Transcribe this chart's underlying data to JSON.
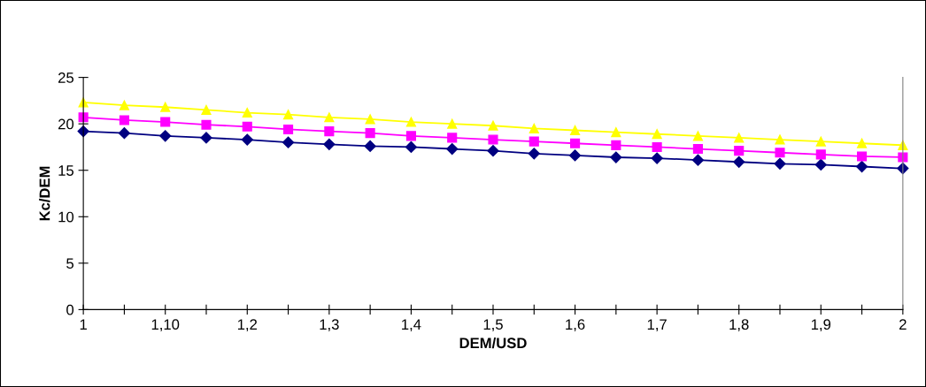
{
  "chart_data": {
    "type": "line",
    "xlabel": "DEM/USD",
    "ylabel": "Kc/DEM",
    "categories": [
      "1",
      null,
      "1,10",
      null,
      "1,2",
      null,
      "1,3",
      null,
      "1,4",
      null,
      "1,5",
      null,
      "1,6",
      null,
      "1,7",
      null,
      "1,8",
      null,
      "1,9",
      null,
      "2"
    ],
    "series": [
      {
        "color": "#000080",
        "marker": "diamond",
        "values": [
          19.2,
          19.0,
          18.7,
          18.5,
          18.3,
          18.0,
          17.8,
          17.6,
          17.5,
          17.3,
          17.1,
          16.8,
          16.6,
          16.4,
          16.3,
          16.1,
          15.9,
          15.7,
          15.6,
          15.4,
          15.2
        ]
      },
      {
        "color": "#ff00ff",
        "marker": "square",
        "values": [
          20.7,
          20.4,
          20.2,
          19.9,
          19.7,
          19.4,
          19.2,
          19.0,
          18.7,
          18.5,
          18.3,
          18.1,
          17.9,
          17.7,
          17.5,
          17.3,
          17.1,
          16.9,
          16.7,
          16.5,
          16.4
        ]
      },
      {
        "color": "#ffff00",
        "marker": "triangle",
        "values": [
          22.3,
          22.0,
          21.8,
          21.5,
          21.2,
          21.0,
          20.7,
          20.5,
          20.2,
          20.0,
          19.8,
          19.5,
          19.3,
          19.1,
          18.9,
          18.7,
          18.5,
          18.3,
          18.1,
          17.9,
          17.7
        ]
      }
    ],
    "ylim": [
      0,
      25
    ],
    "yticks": [
      0,
      5,
      10,
      15,
      20,
      25
    ],
    "grid": false,
    "legend": false
  }
}
